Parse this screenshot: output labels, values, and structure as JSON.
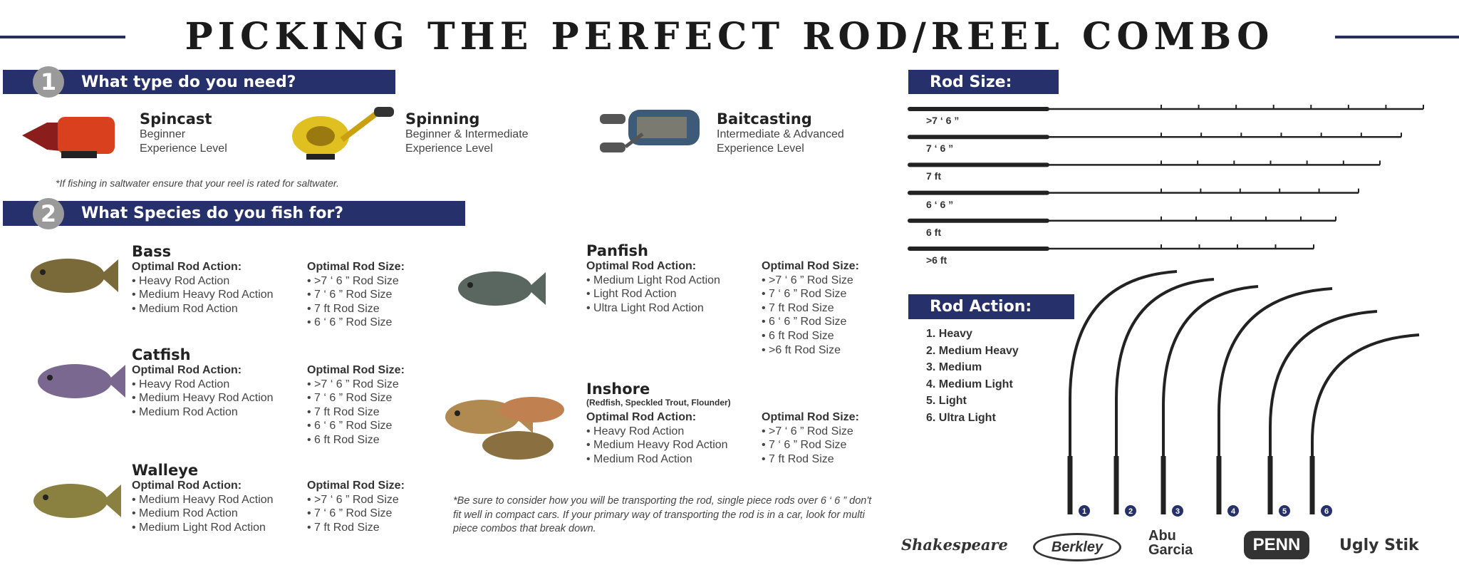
{
  "title": "PICKING THE PERFECT ROD/REEL COMBO",
  "section1": {
    "number": "1",
    "heading": "What type do you need?"
  },
  "reel_types": [
    {
      "name": "Spincast",
      "level1": "Beginner",
      "level2": "Experience Level",
      "icon": "spincast-reel-icon"
    },
    {
      "name": "Spinning",
      "level1": "Beginner & Intermediate",
      "level2": "Experience Level",
      "icon": "spinning-reel-icon"
    },
    {
      "name": "Baitcasting",
      "level1": "Intermediate & Advanced",
      "level2": "Experience Level",
      "icon": "baitcasting-reel-icon"
    }
  ],
  "reel_note": "*If fishing in saltwater ensure that your reel is rated for saltwater.",
  "section2": {
    "number": "2",
    "heading": "What Species do you fish for?"
  },
  "species": [
    {
      "name": "Bass",
      "subtitle": "",
      "action_header": "Optimal Rod Action:",
      "actions": [
        "• Heavy Rod Action",
        "• Medium Heavy Rod Action",
        "• Medium Rod Action"
      ],
      "size_header": "Optimal Rod Size:",
      "sizes": [
        "• >7 ‘ 6 ” Rod Size",
        "• 7 ‘ 6 ” Rod Size",
        "• 7 ft Rod Size",
        "• 6 ‘ 6 ” Rod Size"
      ],
      "color": "#7a6a3a"
    },
    {
      "name": "Catfish",
      "subtitle": "",
      "action_header": "Optimal Rod Action:",
      "actions": [
        "• Heavy Rod Action",
        "• Medium Heavy Rod Action",
        "• Medium Rod Action"
      ],
      "size_header": "Optimal Rod Size:",
      "sizes": [
        "• >7 ‘ 6 ” Rod Size",
        "• 7 ‘ 6 ” Rod Size",
        "• 7 ft Rod Size",
        "• 6 ‘ 6 ” Rod Size",
        "• 6 ft Rod Size"
      ],
      "color": "#7a6890"
    },
    {
      "name": "Walleye",
      "subtitle": "",
      "action_header": "Optimal Rod Action:",
      "actions": [
        "• Medium Heavy Rod Action",
        "• Medium Rod Action",
        "• Medium Light Rod Action"
      ],
      "size_header": "Optimal Rod Size:",
      "sizes": [
        "• >7 ‘ 6 ” Rod Size",
        "• 7 ‘ 6 ” Rod Size",
        "• 7 ft Rod Size"
      ],
      "color": "#8a8040"
    },
    {
      "name": "Panfish",
      "subtitle": "",
      "action_header": "Optimal Rod Action:",
      "actions": [
        "• Medium Light Rod Action",
        "• Light Rod Action",
        "• Ultra Light Rod Action"
      ],
      "size_header": "Optimal Rod Size:",
      "sizes": [
        "• >7 ‘ 6 ” Rod Size",
        "• 7 ‘ 6 ” Rod Size",
        "• 7 ft Rod Size",
        "• 6 ‘ 6 ” Rod Size",
        "• 6 ft Rod Size",
        "• >6 ft Rod Size"
      ],
      "color": "#5a6660"
    },
    {
      "name": "Inshore",
      "subtitle": "(Redfish, Speckled Trout, Flounder)",
      "action_header": "Optimal Rod Action:",
      "actions": [
        "• Heavy Rod Action",
        "• Medium Heavy Rod Action",
        "• Medium Rod Action"
      ],
      "size_header": "Optimal Rod Size:",
      "sizes": [
        "• >7 ‘ 6 ” Rod Size",
        "• 7 ‘ 6 ” Rod Size",
        "• 7 ft Rod Size"
      ],
      "color": "#b08a50"
    }
  ],
  "footnote": "*Be sure to consider how you will be transporting the rod, single piece rods over 6 ‘ 6 ” don't fit well in compact cars. If your primary way of transporting the rod is in a car, look for multi piece combos that break down.",
  "rod_size": {
    "header": "Rod Size:",
    "labels": [
      ">7 ‘ 6 ”",
      "7 ‘ 6 ”",
      "7 ft",
      "6 ‘ 6 ”",
      "6 ft",
      ">6 ft"
    ]
  },
  "rod_action": {
    "header": "Rod Action:",
    "items": [
      "1. Heavy",
      "2. Medium Heavy",
      "3. Medium",
      "4. Medium Light",
      "5. Light",
      "6. Ultra Light"
    ],
    "numbers": [
      "1",
      "2",
      "3",
      "4",
      "5",
      "6"
    ]
  },
  "brands": [
    "Shakespeare",
    "Berkley",
    "Abu Garcia",
    "PENN",
    "Ugly Stik"
  ],
  "colors": {
    "navy": "#26306a",
    "gray_badge": "#9a9a9a"
  }
}
